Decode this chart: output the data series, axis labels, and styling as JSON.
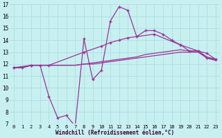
{
  "background_color": "#c8f0f0",
  "grid_color": "#b0e0e0",
  "line_color": "#993399",
  "xlim": [
    -0.5,
    23.5
  ],
  "ylim": [
    7,
    17
  ],
  "yticks": [
    7,
    8,
    9,
    10,
    11,
    12,
    13,
    14,
    15,
    16,
    17
  ],
  "xticks": [
    0,
    1,
    2,
    3,
    4,
    5,
    6,
    7,
    8,
    9,
    10,
    11,
    12,
    13,
    14,
    15,
    16,
    17,
    18,
    19,
    20,
    21,
    22,
    23
  ],
  "xlabel": "Windchill (Refroidissement éolien,°C)",
  "s1_x": [
    0,
    1,
    2,
    3,
    4,
    5,
    6,
    7,
    8,
    9,
    10,
    11,
    12,
    13,
    14,
    15,
    16,
    17,
    18,
    19,
    20,
    21,
    22,
    23
  ],
  "s1_y": [
    11.7,
    11.7,
    11.9,
    11.9,
    9.3,
    7.5,
    7.7,
    6.8,
    14.1,
    10.7,
    11.5,
    15.6,
    16.8,
    16.5,
    14.3,
    14.8,
    14.8,
    14.5,
    14.0,
    13.6,
    13.1,
    13.1,
    12.5,
    12.4
  ],
  "s2_x": [
    0,
    1,
    2,
    3,
    4,
    5,
    6,
    7,
    8,
    9,
    10,
    11,
    12,
    13,
    14,
    15,
    16,
    17,
    18,
    19,
    20,
    21,
    22,
    23
  ],
  "s2_y": [
    11.7,
    11.7,
    11.9,
    11.9,
    11.9,
    11.9,
    11.9,
    11.9,
    12.0,
    12.1,
    12.2,
    12.3,
    12.4,
    12.5,
    12.6,
    12.8,
    12.9,
    13.0,
    13.1,
    13.2,
    13.1,
    13.1,
    12.6,
    12.4
  ],
  "s3_x": [
    0,
    1,
    2,
    3,
    4,
    5,
    6,
    7,
    8,
    9,
    10,
    11,
    12,
    13,
    14,
    15,
    16,
    17,
    18,
    19,
    20,
    21,
    22,
    23
  ],
  "s3_y": [
    11.7,
    11.7,
    11.9,
    11.9,
    11.9,
    11.9,
    11.9,
    11.9,
    12.0,
    12.0,
    12.1,
    12.2,
    12.3,
    12.4,
    12.5,
    12.6,
    12.7,
    12.8,
    12.9,
    13.0,
    13.0,
    13.0,
    12.5,
    12.3
  ],
  "s4_x": [
    0,
    2,
    4,
    8,
    10,
    11,
    12,
    13,
    16,
    19,
    21,
    22,
    23
  ],
  "s4_y": [
    11.7,
    11.9,
    11.9,
    13.0,
    13.5,
    13.8,
    14.0,
    14.2,
    14.5,
    13.6,
    13.1,
    12.9,
    12.4
  ]
}
